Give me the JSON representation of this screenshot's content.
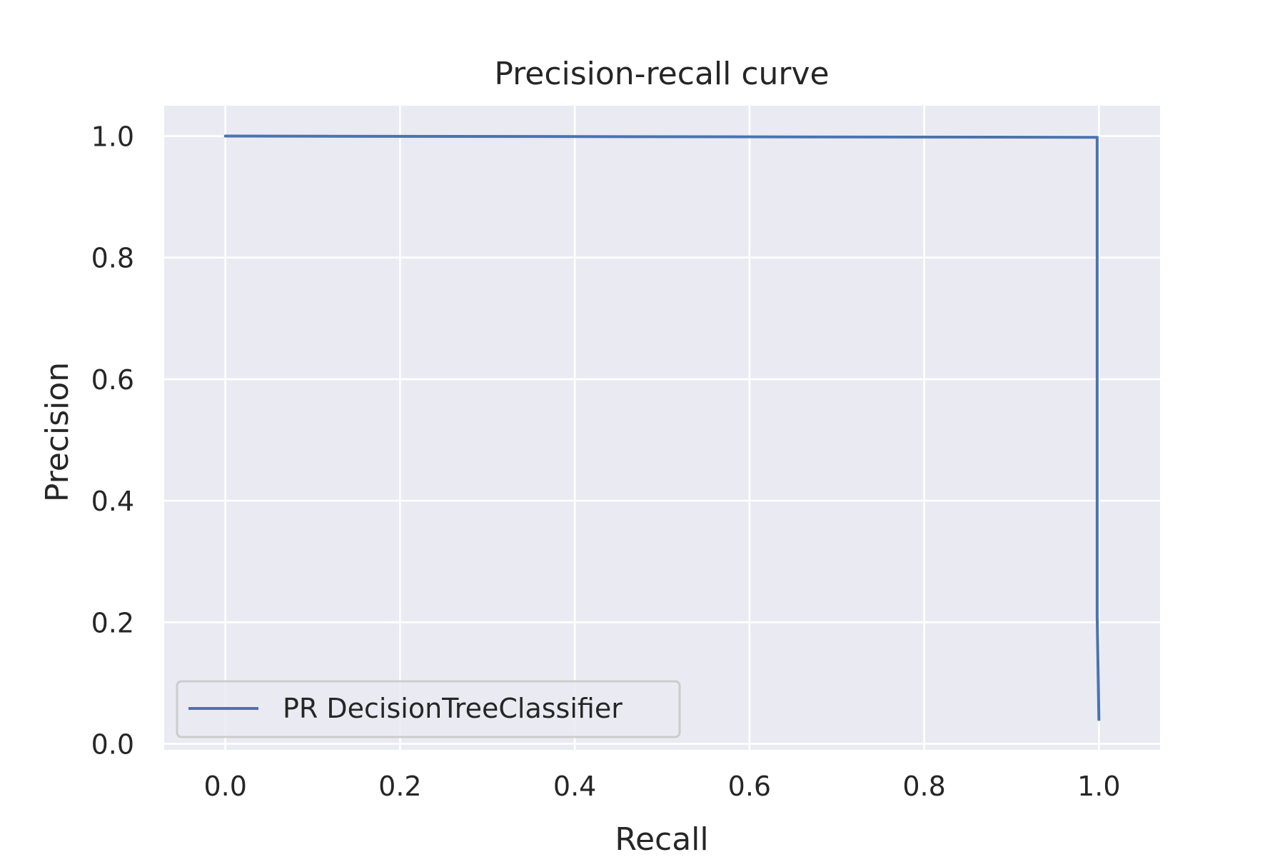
{
  "chart_data": {
    "type": "line",
    "title": "Precision-recall curve",
    "xlabel": "Recall",
    "ylabel": "Precision",
    "xlim": [
      -0.07,
      1.07
    ],
    "ylim": [
      -0.01,
      1.05
    ],
    "xticks": [
      0.0,
      0.2,
      0.4,
      0.6,
      0.8,
      1.0
    ],
    "xtick_labels": [
      "0.0",
      "0.2",
      "0.4",
      "0.6",
      "0.8",
      "1.0"
    ],
    "yticks": [
      0.0,
      0.2,
      0.4,
      0.6,
      0.8,
      1.0
    ],
    "ytick_labels": [
      "0.0",
      "0.2",
      "0.4",
      "0.6",
      "0.8",
      "1.0"
    ],
    "grid": true,
    "legend_position": "lower-left",
    "series": [
      {
        "name": "PR DecisionTreeClassifier",
        "color": "#4c72b0",
        "x": [
          0.0,
          0.998,
          0.998,
          0.998,
          1.0
        ],
        "y": [
          1.0,
          0.998,
          0.998,
          0.21,
          0.04
        ]
      }
    ]
  }
}
